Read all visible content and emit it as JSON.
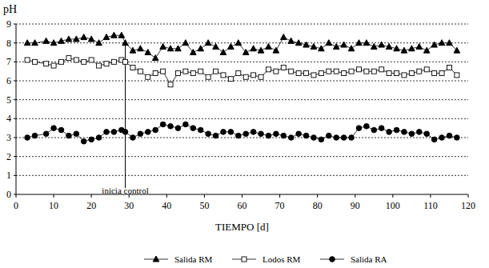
{
  "chart_data": {
    "type": "line",
    "y_label": "pH",
    "x_label": "TIEMPO [d]",
    "xlim": [
      0,
      120
    ],
    "ylim": [
      0,
      9
    ],
    "xticks": [
      0,
      10,
      20,
      30,
      40,
      50,
      60,
      70,
      80,
      90,
      100,
      110,
      120
    ],
    "yticks": [
      0,
      1,
      2,
      3,
      4,
      5,
      6,
      7,
      8,
      9
    ],
    "grid": true,
    "legend": "bottom",
    "x": [
      3,
      5,
      8,
      10,
      12,
      14,
      16,
      18,
      20,
      22,
      24,
      26,
      28,
      29,
      31,
      33,
      35,
      37,
      39,
      41,
      43,
      45,
      47,
      49,
      51,
      53,
      55,
      57,
      59,
      61,
      63,
      65,
      67,
      69,
      71,
      73,
      75,
      77,
      79,
      81,
      83,
      85,
      87,
      89,
      91,
      93,
      95,
      97,
      99,
      101,
      103,
      105,
      107,
      109,
      111,
      113,
      115,
      117
    ],
    "series": [
      {
        "name": "Salida RM",
        "color": "#000000",
        "marker": "triangle",
        "line_style": "solid",
        "values": [
          8.0,
          8.0,
          8.1,
          8.0,
          8.1,
          8.2,
          8.2,
          8.3,
          8.2,
          8.0,
          8.3,
          8.4,
          8.4,
          8.0,
          7.6,
          7.7,
          7.5,
          7.2,
          7.8,
          7.7,
          7.7,
          8.0,
          7.5,
          7.7,
          8.0,
          7.8,
          7.5,
          7.8,
          8.0,
          7.5,
          7.7,
          7.6,
          7.8,
          7.6,
          8.3,
          8.1,
          8.0,
          7.9,
          7.8,
          7.7,
          8.0,
          7.8,
          7.9,
          7.7,
          8.0,
          8.0,
          7.8,
          7.9,
          7.8,
          7.7,
          7.6,
          7.7,
          7.8,
          7.6,
          7.9,
          8.0,
          8.0,
          7.6
        ]
      },
      {
        "name": "Lodos RM",
        "color": "#000000",
        "marker": "open-square",
        "line_style": "solid",
        "values": [
          7.1,
          7.0,
          6.9,
          6.8,
          7.0,
          7.2,
          7.1,
          7.0,
          7.1,
          6.8,
          6.9,
          7.0,
          7.1,
          7.0,
          6.7,
          6.5,
          6.2,
          6.4,
          6.5,
          5.8,
          6.4,
          6.5,
          6.4,
          6.5,
          6.2,
          6.5,
          6.3,
          6.1,
          6.4,
          6.2,
          6.3,
          6.2,
          6.6,
          6.5,
          6.7,
          6.5,
          6.4,
          6.4,
          6.3,
          6.4,
          6.5,
          6.5,
          6.4,
          6.5,
          6.6,
          6.5,
          6.5,
          6.6,
          6.4,
          6.4,
          6.3,
          6.4,
          6.5,
          6.6,
          6.4,
          6.4,
          6.7,
          6.3
        ]
      },
      {
        "name": "Salida RA",
        "color": "#000000",
        "marker": "circle",
        "line_style": "solid",
        "values": [
          3.0,
          3.1,
          3.2,
          3.5,
          3.4,
          3.1,
          3.2,
          2.8,
          2.9,
          3.0,
          3.3,
          3.3,
          3.4,
          3.3,
          3.0,
          3.2,
          3.3,
          3.4,
          3.7,
          3.6,
          3.5,
          3.7,
          3.5,
          3.4,
          3.2,
          3.1,
          3.3,
          3.3,
          3.1,
          3.2,
          3.3,
          3.2,
          3.1,
          3.2,
          3.1,
          3.0,
          3.2,
          3.1,
          3.0,
          2.9,
          3.1,
          3.0,
          3.0,
          3.0,
          3.5,
          3.6,
          3.4,
          3.5,
          3.3,
          3.4,
          3.3,
          3.2,
          3.3,
          3.2,
          2.9,
          3.0,
          3.1,
          3.0
        ]
      }
    ],
    "annotations": [
      {
        "text": "inicia control",
        "x": 29
      }
    ]
  }
}
